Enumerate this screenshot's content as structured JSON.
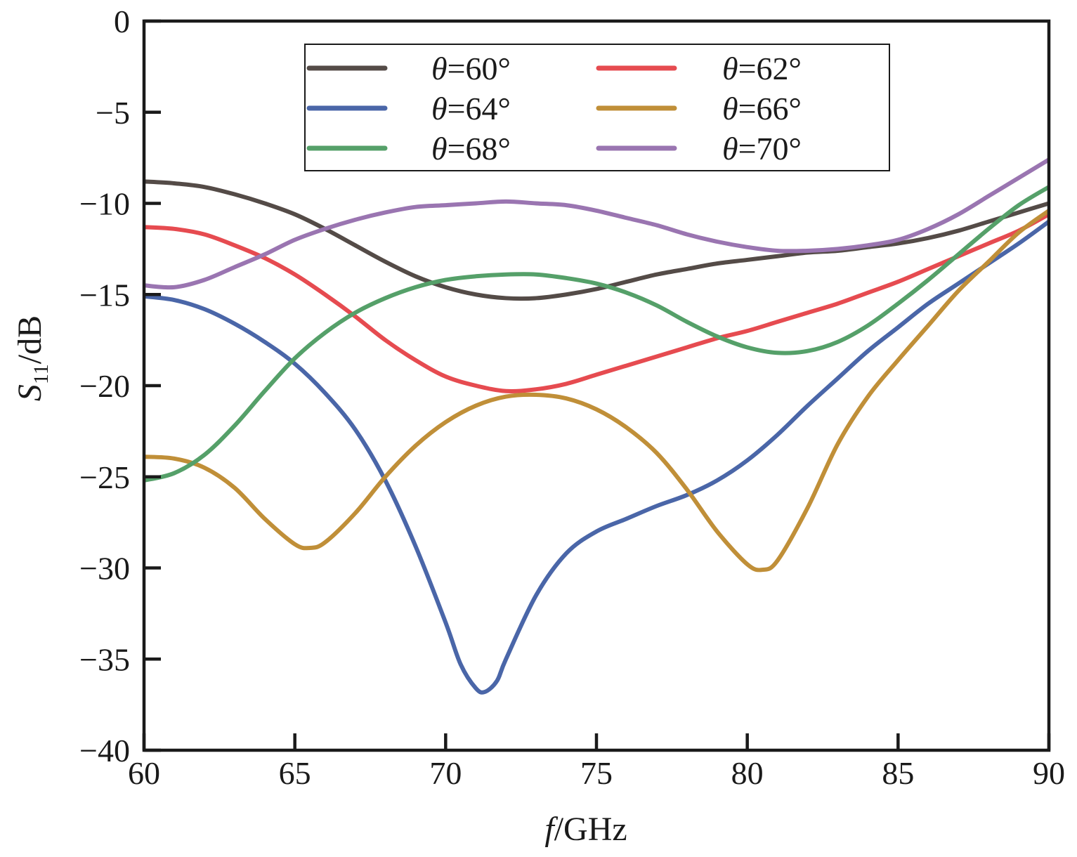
{
  "chart_data": {
    "type": "line",
    "title": "",
    "xlabel": {
      "var": "f",
      "unit": "/GHz"
    },
    "ylabel": {
      "var": "S",
      "sub": "11",
      "unit": "/dB"
    },
    "xlim": [
      60,
      90
    ],
    "ylim": [
      -40,
      0
    ],
    "xticks": [
      60,
      65,
      70,
      75,
      80,
      85,
      90
    ],
    "yticks": [
      0,
      -5,
      -10,
      -15,
      -20,
      -25,
      -30,
      -35,
      -40
    ],
    "ytick_labels": [
      "0",
      "−5",
      "−10",
      "−15",
      "−20",
      "−25",
      "−30",
      "−35",
      "−40"
    ],
    "grid": false,
    "legend_position": "top-center",
    "series": [
      {
        "name": "θ=60°",
        "symbol": "θ",
        "rest": "=60°",
        "color": "#544b47",
        "x": [
          60,
          61,
          62,
          63,
          64,
          65,
          66,
          67,
          68,
          69,
          70,
          71,
          72,
          73,
          74,
          75,
          76,
          77,
          78,
          79,
          80,
          81,
          82,
          83,
          84,
          85,
          86,
          87,
          88,
          89,
          90
        ],
        "y": [
          -8.8,
          -8.9,
          -9.1,
          -9.5,
          -10.0,
          -10.6,
          -11.4,
          -12.3,
          -13.2,
          -14.0,
          -14.6,
          -15.0,
          -15.2,
          -15.2,
          -15.0,
          -14.7,
          -14.3,
          -13.9,
          -13.6,
          -13.3,
          -13.1,
          -12.9,
          -12.7,
          -12.6,
          -12.4,
          -12.2,
          -11.9,
          -11.5,
          -11.0,
          -10.5,
          -10.0
        ]
      },
      {
        "name": "θ=62°",
        "symbol": "θ",
        "rest": "=62°",
        "color": "#e64b50",
        "x": [
          60,
          61,
          62,
          63,
          64,
          65,
          66,
          67,
          68,
          69,
          70,
          71,
          72,
          73,
          74,
          75,
          76,
          77,
          78,
          79,
          80,
          81,
          82,
          83,
          84,
          85,
          86,
          87,
          88,
          89,
          90
        ],
        "y": [
          -11.3,
          -11.4,
          -11.7,
          -12.3,
          -13.0,
          -13.9,
          -15.0,
          -16.2,
          -17.5,
          -18.6,
          -19.5,
          -20.0,
          -20.3,
          -20.2,
          -19.9,
          -19.4,
          -18.9,
          -18.4,
          -17.9,
          -17.4,
          -17.0,
          -16.5,
          -16.0,
          -15.5,
          -14.9,
          -14.3,
          -13.6,
          -12.9,
          -12.2,
          -11.5,
          -10.6
        ]
      },
      {
        "name": "θ=64°",
        "symbol": "θ",
        "rest": "=64°",
        "color": "#4a66a8",
        "x": [
          60,
          61,
          62,
          63,
          64,
          65,
          66,
          67,
          68,
          69,
          70,
          70.5,
          71,
          71.3,
          71.7,
          72,
          73,
          74,
          75,
          76,
          77,
          78,
          79,
          80,
          81,
          82,
          83,
          84,
          85,
          86,
          87,
          88,
          89,
          90
        ],
        "y": [
          -15.1,
          -15.3,
          -15.8,
          -16.6,
          -17.6,
          -18.8,
          -20.4,
          -22.4,
          -25.2,
          -28.8,
          -33.0,
          -35.3,
          -36.6,
          -36.8,
          -36.2,
          -35.0,
          -31.5,
          -29.2,
          -28.0,
          -27.3,
          -26.6,
          -26.0,
          -25.2,
          -24.1,
          -22.7,
          -21.1,
          -19.6,
          -18.1,
          -16.8,
          -15.5,
          -14.4,
          -13.3,
          -12.2,
          -11.0
        ]
      },
      {
        "name": "θ=66°",
        "symbol": "θ",
        "rest": "=66°",
        "color": "#c08f38",
        "x": [
          60,
          61,
          62,
          63,
          64,
          65,
          65.5,
          66,
          67,
          68,
          69,
          70,
          71,
          72,
          73,
          74,
          75,
          76,
          77,
          78,
          79,
          80,
          80.5,
          81,
          82,
          83,
          84,
          85,
          86,
          87,
          88,
          89,
          90
        ],
        "y": [
          -23.9,
          -24.0,
          -24.5,
          -25.6,
          -27.3,
          -28.7,
          -28.9,
          -28.6,
          -27.0,
          -25.0,
          -23.3,
          -22.0,
          -21.1,
          -20.6,
          -20.5,
          -20.7,
          -21.3,
          -22.3,
          -23.7,
          -25.7,
          -28.0,
          -29.8,
          -30.1,
          -29.6,
          -26.7,
          -23.2,
          -20.6,
          -18.6,
          -16.7,
          -14.8,
          -13.2,
          -11.6,
          -10.4
        ]
      },
      {
        "name": "θ=68°",
        "symbol": "θ",
        "rest": "=68°",
        "color": "#55a069",
        "x": [
          60,
          61,
          62,
          63,
          64,
          65,
          66,
          67,
          68,
          69,
          70,
          71,
          72,
          73,
          74,
          75,
          76,
          77,
          78,
          79,
          80,
          81,
          82,
          83,
          84,
          85,
          86,
          87,
          88,
          89,
          90
        ],
        "y": [
          -25.2,
          -24.8,
          -23.8,
          -22.2,
          -20.3,
          -18.5,
          -17.1,
          -16.0,
          -15.2,
          -14.6,
          -14.2,
          -14.0,
          -13.9,
          -13.9,
          -14.1,
          -14.4,
          -14.9,
          -15.6,
          -16.5,
          -17.3,
          -17.9,
          -18.2,
          -18.1,
          -17.6,
          -16.7,
          -15.5,
          -14.2,
          -12.8,
          -11.4,
          -10.1,
          -9.1
        ]
      },
      {
        "name": "θ=70°",
        "symbol": "θ",
        "rest": "=70°",
        "color": "#9a75b1",
        "x": [
          60,
          61,
          62,
          63,
          64,
          65,
          66,
          67,
          68,
          69,
          70,
          71,
          72,
          73,
          74,
          75,
          76,
          77,
          78,
          79,
          80,
          81,
          82,
          83,
          84,
          85,
          86,
          87,
          88,
          89,
          90
        ],
        "y": [
          -14.5,
          -14.6,
          -14.2,
          -13.5,
          -12.8,
          -12.0,
          -11.4,
          -10.9,
          -10.5,
          -10.2,
          -10.1,
          -10.0,
          -9.9,
          -10.0,
          -10.1,
          -10.4,
          -10.8,
          -11.2,
          -11.7,
          -12.1,
          -12.4,
          -12.6,
          -12.6,
          -12.5,
          -12.3,
          -12.0,
          -11.4,
          -10.6,
          -9.6,
          -8.6,
          -7.6
        ]
      }
    ]
  }
}
